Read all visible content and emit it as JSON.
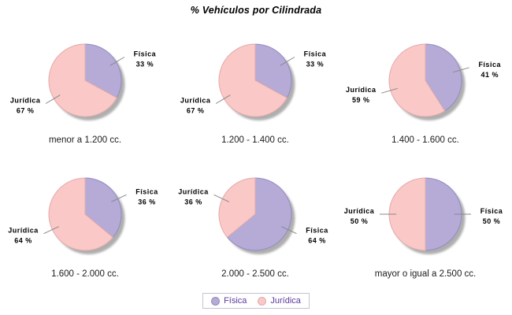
{
  "title": "% Vehículos por Cilindrada",
  "colors": {
    "fisica_fill": "#b5abd6",
    "fisica_border": "#9489c2",
    "juridica_fill": "#f9c8c7",
    "juridica_border": "#e2aba9",
    "shadow": "#9b9b9b",
    "leader_line": "#888888",
    "slice_label_text": "#000000",
    "category_text": "#1c1c1c",
    "legend_text": "#5b3a9b",
    "legend_border": "#c6c2d6",
    "background": "#ffffff"
  },
  "legend": {
    "items": [
      {
        "label": "Física",
        "color": "#b5abd6"
      },
      {
        "label": "Jurídica",
        "color": "#f9c8c7"
      }
    ]
  },
  "chart_data": [
    {
      "type": "pie",
      "title": "menor a 1.200 cc.",
      "labels": [
        "Física",
        "Jurídica"
      ],
      "values": [
        33,
        67
      ],
      "value_suffix": " %"
    },
    {
      "type": "pie",
      "title": "1.200 - 1.400 cc.",
      "labels": [
        "Física",
        "Jurídica"
      ],
      "values": [
        33,
        67
      ],
      "value_suffix": " %"
    },
    {
      "type": "pie",
      "title": "1.400 - 1.600 cc.",
      "labels": [
        "Física",
        "Jurídica"
      ],
      "values": [
        41,
        59
      ],
      "value_suffix": " %"
    },
    {
      "type": "pie",
      "title": "1.600 - 2.000 cc.",
      "labels": [
        "Física",
        "Jurídica"
      ],
      "values": [
        36,
        64
      ],
      "value_suffix": " %"
    },
    {
      "type": "pie",
      "title": "2.000 - 2.500 cc.",
      "labels": [
        "Física",
        "Jurídica"
      ],
      "values": [
        64,
        36
      ],
      "value_suffix": " %"
    },
    {
      "type": "pie",
      "title": "mayor o igual a 2.500 cc.",
      "labels": [
        "Física",
        "Jurídica"
      ],
      "values": [
        50,
        50
      ],
      "value_suffix": " %"
    }
  ]
}
